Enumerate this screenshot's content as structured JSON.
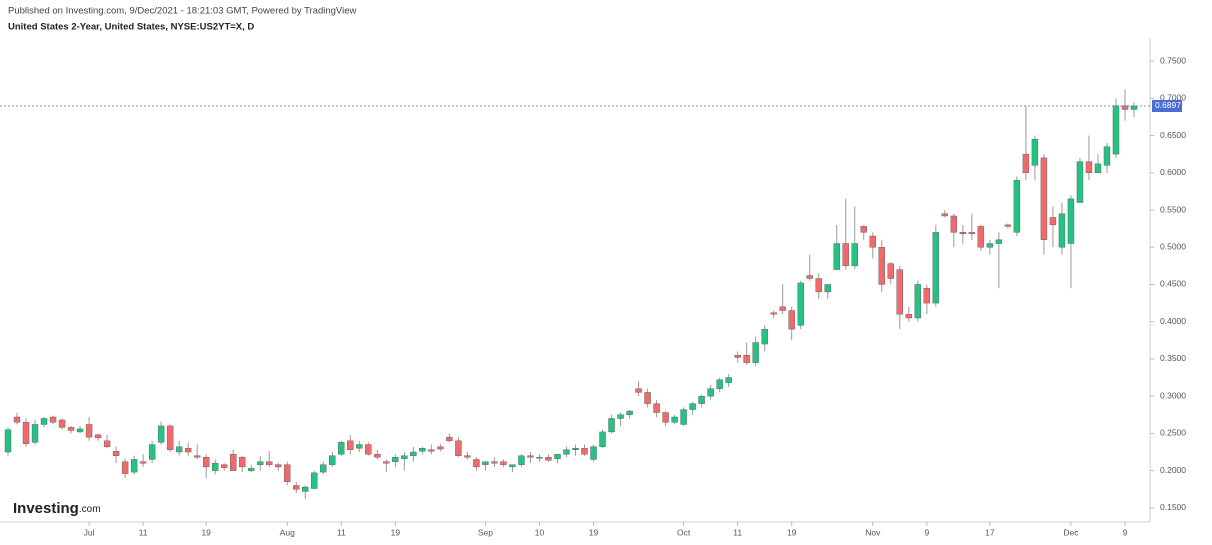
{
  "chart_data": {
    "type": "candlestick",
    "header_note": "Published on Investing.com, 9/Dec/2021 - 18:21:03 GMT, Powered by TradingView",
    "title": "United States 2-Year, United States, NYSE:US2YT=X, D",
    "watermark": "Investing",
    "watermark_suffix": ".com",
    "up_color": "#26c281",
    "down_color": "#ef6b6b",
    "wick_color": "#9a9a9a",
    "last_price": 0.6897,
    "last_price_color": "#4a6cd4",
    "ylim": [
      0.131,
      0.781
    ],
    "yticks": [
      {
        "value": 0.15,
        "label": "0.1500"
      },
      {
        "value": 0.2,
        "label": "0.2000"
      },
      {
        "value": 0.25,
        "label": "0.2500"
      },
      {
        "value": 0.3,
        "label": "0.3000"
      },
      {
        "value": 0.35,
        "label": "0.3500"
      },
      {
        "value": 0.4,
        "label": "0.4000"
      },
      {
        "value": 0.45,
        "label": "0.4500"
      },
      {
        "value": 0.5,
        "label": "0.5000"
      },
      {
        "value": 0.55,
        "label": "0.5500"
      },
      {
        "value": 0.6,
        "label": "0.6000"
      },
      {
        "value": 0.65,
        "label": "0.6500"
      },
      {
        "value": 0.7,
        "label": "0.7000"
      },
      {
        "value": 0.75,
        "label": "0.7500"
      }
    ],
    "categories": [
      null,
      null,
      null,
      null,
      null,
      null,
      null,
      null,
      null,
      "Jul",
      null,
      null,
      null,
      null,
      null,
      "11",
      null,
      null,
      null,
      null,
      null,
      null,
      "19",
      null,
      null,
      null,
      null,
      null,
      null,
      null,
      null,
      "Aug",
      null,
      null,
      null,
      null,
      null,
      "11",
      null,
      null,
      null,
      null,
      null,
      "19",
      null,
      null,
      null,
      null,
      null,
      null,
      null,
      null,
      null,
      "Sep",
      null,
      null,
      null,
      null,
      null,
      "10",
      null,
      null,
      null,
      null,
      null,
      "19",
      null,
      null,
      null,
      null,
      null,
      null,
      null,
      null,
      null,
      "Oct",
      null,
      null,
      null,
      null,
      null,
      "11",
      null,
      null,
      null,
      null,
      null,
      "19",
      null,
      null,
      null,
      null,
      null,
      null,
      null,
      null,
      "Nov",
      null,
      null,
      null,
      null,
      null,
      "9",
      null,
      null,
      null,
      null,
      null,
      null,
      "17",
      null,
      null,
      null,
      null,
      null,
      null,
      null,
      null,
      "Dec",
      null,
      null,
      null,
      null,
      null,
      "9",
      null
    ],
    "open": [
      0.225,
      0.272,
      0.265,
      0.238,
      0.262,
      0.272,
      0.268,
      0.258,
      0.252,
      0.262,
      0.248,
      0.24,
      0.226,
      0.212,
      0.198,
      0.212,
      0.215,
      0.238,
      0.26,
      0.225,
      0.23,
      0.22,
      0.218,
      0.2,
      0.208,
      0.222,
      0.218,
      0.2,
      0.208,
      0.212,
      0.208,
      0.208,
      0.18,
      0.172,
      0.176,
      0.198,
      0.208,
      0.222,
      0.24,
      0.23,
      0.235,
      0.222,
      0.212,
      0.212,
      0.216,
      0.22,
      0.226,
      0.228,
      0.232,
      0.245,
      0.24,
      0.22,
      0.215,
      0.208,
      0.212,
      0.212,
      0.205,
      0.208,
      0.22,
      0.218,
      0.218,
      0.216,
      0.222,
      0.228,
      0.23,
      0.215,
      0.232,
      0.252,
      0.27,
      0.275,
      0.31,
      0.305,
      0.29,
      0.278,
      0.265,
      0.262,
      0.282,
      0.29,
      0.3,
      0.31,
      0.318,
      0.355,
      0.355,
      0.345,
      0.37,
      0.412,
      0.42,
      0.415,
      0.395,
      0.462,
      0.458,
      0.44,
      0.47,
      0.505,
      0.475,
      0.528,
      0.515,
      0.5,
      0.478,
      0.47,
      0.41,
      0.405,
      0.445,
      0.425,
      0.545,
      0.542,
      0.52,
      0.52,
      0.528,
      0.5,
      0.505,
      0.53,
      0.52,
      0.625,
      0.61,
      0.62,
      0.54,
      0.5,
      0.505,
      0.56,
      0.615,
      0.6,
      0.61,
      0.625,
      0.69,
      0.685
    ],
    "high": [
      0.258,
      0.278,
      0.27,
      0.268,
      0.272,
      0.274,
      0.27,
      0.26,
      0.26,
      0.272,
      0.25,
      0.248,
      0.232,
      0.216,
      0.22,
      0.222,
      0.24,
      0.266,
      0.262,
      0.24,
      0.238,
      0.235,
      0.222,
      0.215,
      0.21,
      0.228,
      0.22,
      0.208,
      0.22,
      0.226,
      0.21,
      0.212,
      0.185,
      0.18,
      0.2,
      0.212,
      0.225,
      0.24,
      0.248,
      0.24,
      0.238,
      0.228,
      0.215,
      0.222,
      0.225,
      0.232,
      0.232,
      0.235,
      0.236,
      0.25,
      0.245,
      0.225,
      0.218,
      0.212,
      0.218,
      0.215,
      0.208,
      0.222,
      0.225,
      0.222,
      0.222,
      0.22,
      0.232,
      0.235,
      0.235,
      0.235,
      0.255,
      0.275,
      0.278,
      0.282,
      0.32,
      0.31,
      0.295,
      0.28,
      0.275,
      0.285,
      0.292,
      0.302,
      0.315,
      0.325,
      0.33,
      0.36,
      0.372,
      0.38,
      0.395,
      0.415,
      0.45,
      0.42,
      0.455,
      0.49,
      0.465,
      0.45,
      0.53,
      0.565,
      0.555,
      0.53,
      0.52,
      0.51,
      0.48,
      0.475,
      0.42,
      0.455,
      0.45,
      0.53,
      0.55,
      0.545,
      0.53,
      0.545,
      0.53,
      0.51,
      0.52,
      0.532,
      0.595,
      0.69,
      0.65,
      0.625,
      0.555,
      0.56,
      0.57,
      0.62,
      0.65,
      0.625,
      0.64,
      0.7,
      0.712,
      0.695
    ],
    "low": [
      0.22,
      0.262,
      0.232,
      0.235,
      0.258,
      0.262,
      0.255,
      0.25,
      0.25,
      0.24,
      0.24,
      0.23,
      0.21,
      0.19,
      0.195,
      0.205,
      0.21,
      0.235,
      0.225,
      0.22,
      0.22,
      0.215,
      0.19,
      0.195,
      0.2,
      0.2,
      0.198,
      0.198,
      0.2,
      0.205,
      0.2,
      0.18,
      0.17,
      0.162,
      0.175,
      0.195,
      0.205,
      0.22,
      0.222,
      0.225,
      0.22,
      0.215,
      0.198,
      0.205,
      0.2,
      0.212,
      0.222,
      0.222,
      0.226,
      0.238,
      0.218,
      0.215,
      0.2,
      0.2,
      0.205,
      0.205,
      0.198,
      0.205,
      0.21,
      0.212,
      0.212,
      0.21,
      0.218,
      0.22,
      0.22,
      0.212,
      0.23,
      0.25,
      0.26,
      0.27,
      0.3,
      0.285,
      0.272,
      0.26,
      0.262,
      0.26,
      0.275,
      0.285,
      0.295,
      0.305,
      0.312,
      0.345,
      0.342,
      0.34,
      0.36,
      0.405,
      0.41,
      0.375,
      0.39,
      0.455,
      0.43,
      0.43,
      0.47,
      0.47,
      0.47,
      0.51,
      0.485,
      0.44,
      0.45,
      0.39,
      0.4,
      0.4,
      0.41,
      0.42,
      0.54,
      0.5,
      0.505,
      0.51,
      0.495,
      0.49,
      0.445,
      0.525,
      0.515,
      0.59,
      0.59,
      0.49,
      0.5,
      0.49,
      0.445,
      0.56,
      0.59,
      0.6,
      0.6,
      0.62,
      0.67,
      0.675
    ],
    "close": [
      0.255,
      0.265,
      0.236,
      0.262,
      0.27,
      0.265,
      0.258,
      0.254,
      0.256,
      0.245,
      0.244,
      0.232,
      0.22,
      0.196,
      0.215,
      0.21,
      0.235,
      0.26,
      0.228,
      0.232,
      0.225,
      0.218,
      0.205,
      0.21,
      0.204,
      0.2,
      0.205,
      0.203,
      0.212,
      0.208,
      0.205,
      0.185,
      0.175,
      0.178,
      0.197,
      0.208,
      0.22,
      0.238,
      0.228,
      0.235,
      0.222,
      0.218,
      0.21,
      0.218,
      0.22,
      0.225,
      0.23,
      0.226,
      0.229,
      0.24,
      0.22,
      0.218,
      0.205,
      0.212,
      0.21,
      0.208,
      0.208,
      0.22,
      0.218,
      0.218,
      0.214,
      0.222,
      0.228,
      0.23,
      0.222,
      0.232,
      0.252,
      0.27,
      0.275,
      0.28,
      0.305,
      0.29,
      0.278,
      0.265,
      0.272,
      0.282,
      0.29,
      0.3,
      0.31,
      0.322,
      0.325,
      0.352,
      0.345,
      0.372,
      0.39,
      0.41,
      0.415,
      0.39,
      0.452,
      0.458,
      0.44,
      0.45,
      0.505,
      0.475,
      0.505,
      0.52,
      0.5,
      0.45,
      0.458,
      0.41,
      0.405,
      0.45,
      0.425,
      0.52,
      0.542,
      0.52,
      0.518,
      0.518,
      0.5,
      0.505,
      0.51,
      0.528,
      0.59,
      0.6,
      0.645,
      0.51,
      0.53,
      0.545,
      0.565,
      0.615,
      0.6,
      0.612,
      0.635,
      0.69,
      0.685,
      0.6897
    ]
  }
}
